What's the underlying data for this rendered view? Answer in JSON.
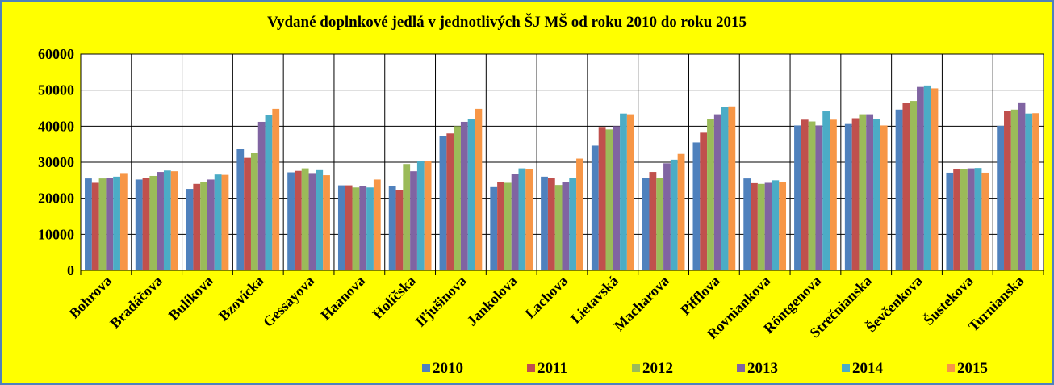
{
  "chart_data": {
    "type": "bar",
    "title": "Vydané doplnkové jedlá v jednotlivých ŠJ MŠ od roku 2010 do roku 2015",
    "categories": [
      "Bohrova",
      "Bradáčova",
      "Bulíkova",
      "Bzovícka",
      "Gessayova",
      "Haanova",
      "Holíčska",
      "Iľjušinova",
      "Jankolova",
      "Lachova",
      "Lietavská",
      "Macharova",
      "Pifflova",
      "Rovniankova",
      "Röntgenova",
      "Strečnianska",
      "Ševčenkova",
      "Šustekova",
      "Turnianska"
    ],
    "series": [
      {
        "name": "2010",
        "color": "#4f81bd",
        "values": [
          25500,
          25200,
          22600,
          33600,
          27200,
          23600,
          23300,
          37300,
          23100,
          26000,
          34600,
          25700,
          35500,
          25500,
          40200,
          40600,
          44600,
          27100,
          40100
        ]
      },
      {
        "name": "2011",
        "color": "#c0504d",
        "values": [
          24300,
          25600,
          24000,
          31200,
          27600,
          23600,
          22200,
          38000,
          24500,
          25600,
          39800,
          27300,
          38200,
          24200,
          41800,
          42200,
          46400,
          28000,
          44200
        ]
      },
      {
        "name": "2012",
        "color": "#9bbb59",
        "values": [
          25500,
          26200,
          24400,
          32600,
          28300,
          23000,
          29500,
          40000,
          24300,
          23700,
          39100,
          25600,
          42000,
          24000,
          41300,
          43300,
          47000,
          28200,
          44600
        ]
      },
      {
        "name": "2013",
        "color": "#8064a2",
        "values": [
          25600,
          27300,
          25200,
          41200,
          27000,
          23300,
          27500,
          41200,
          26800,
          24400,
          40000,
          29700,
          43300,
          24300,
          40200,
          43300,
          50900,
          28300,
          46600
        ]
      },
      {
        "name": "2014",
        "color": "#4bacc6",
        "values": [
          26000,
          27700,
          26600,
          43000,
          27800,
          23000,
          30300,
          42000,
          28300,
          25600,
          43500,
          30700,
          45300,
          25000,
          44100,
          42000,
          51300,
          28400,
          43500
        ]
      },
      {
        "name": "2015",
        "color": "#f79646",
        "values": [
          27000,
          27500,
          26500,
          44800,
          26400,
          25200,
          30300,
          44800,
          28100,
          31000,
          43300,
          32300,
          45500,
          24600,
          41800,
          40200,
          50500,
          27100,
          43600
        ]
      }
    ],
    "ylim": [
      0,
      60000
    ],
    "yticks": [
      0,
      10000,
      20000,
      30000,
      40000,
      50000,
      60000
    ],
    "grid": true,
    "legend": "bottom"
  }
}
